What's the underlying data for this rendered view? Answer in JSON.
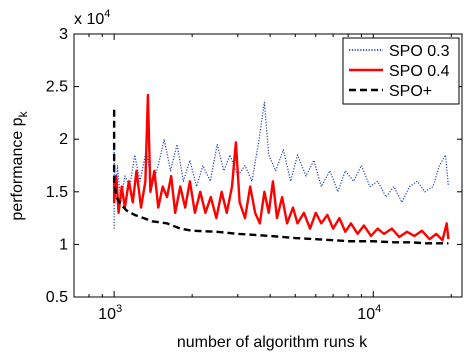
{
  "chart_data": {
    "type": "line",
    "title": "",
    "exponent_label": "x 10",
    "exponent_power": "4",
    "xlabel": "number of algorithm runs k",
    "ylabel_main": "performance p",
    "ylabel_sub": "k",
    "xscale": "log",
    "xlim": [
      700,
      22000
    ],
    "ylim": [
      0.5,
      3.0
    ],
    "grid": false,
    "legend_position": "top-right",
    "y_ticks": [
      {
        "value": 0.5,
        "label": "0.5"
      },
      {
        "value": 1.0,
        "label": "1"
      },
      {
        "value": 1.5,
        "label": "1.5"
      },
      {
        "value": 2.0,
        "label": "2"
      },
      {
        "value": 2.5,
        "label": "2.5"
      },
      {
        "value": 3.0,
        "label": "3"
      }
    ],
    "x_ticks": [
      {
        "value": 1000,
        "base": "10",
        "power": "3"
      },
      {
        "value": 10000,
        "base": "10",
        "power": "4"
      }
    ],
    "series": [
      {
        "name": "SPO 0.3",
        "color": "#1f3fcf",
        "style": "dotted",
        "points": [
          [
            1000,
            1.15
          ],
          [
            1000,
            1.9
          ],
          [
            1010,
            1.45
          ],
          [
            1030,
            1.75
          ],
          [
            1060,
            1.4
          ],
          [
            1100,
            1.65
          ],
          [
            1150,
            1.55
          ],
          [
            1200,
            1.85
          ],
          [
            1260,
            1.6
          ],
          [
            1330,
            1.9
          ],
          [
            1400,
            1.55
          ],
          [
            1480,
            1.75
          ],
          [
            1560,
            2.0
          ],
          [
            1650,
            1.7
          ],
          [
            1750,
            1.95
          ],
          [
            1850,
            1.6
          ],
          [
            1960,
            1.8
          ],
          [
            2080,
            1.55
          ],
          [
            2200,
            1.75
          ],
          [
            2350,
            1.6
          ],
          [
            2500,
            1.95
          ],
          [
            2650,
            1.7
          ],
          [
            2800,
            1.85
          ],
          [
            3000,
            1.65
          ],
          [
            3200,
            1.75
          ],
          [
            3400,
            1.6
          ],
          [
            3600,
            1.95
          ],
          [
            3800,
            2.35
          ],
          [
            3950,
            1.85
          ],
          [
            4200,
            1.7
          ],
          [
            4500,
            1.9
          ],
          [
            4800,
            1.6
          ],
          [
            5100,
            1.85
          ],
          [
            5500,
            1.65
          ],
          [
            5900,
            1.8
          ],
          [
            6300,
            1.55
          ],
          [
            6800,
            1.7
          ],
          [
            7300,
            1.5
          ],
          [
            7800,
            1.7
          ],
          [
            8400,
            1.6
          ],
          [
            9000,
            1.75
          ],
          [
            9700,
            1.55
          ],
          [
            10400,
            1.6
          ],
          [
            11200,
            1.45
          ],
          [
            12000,
            1.55
          ],
          [
            12900,
            1.4
          ],
          [
            13800,
            1.55
          ],
          [
            14800,
            1.6
          ],
          [
            15800,
            1.5
          ],
          [
            17000,
            1.55
          ],
          [
            18000,
            1.75
          ],
          [
            19000,
            1.85
          ],
          [
            19500,
            1.55
          ]
        ]
      },
      {
        "name": "SPO 0.4",
        "color": "#ff0000",
        "style": "solid",
        "points": [
          [
            1000,
            1.6
          ],
          [
            1000,
            1.4
          ],
          [
            1020,
            1.65
          ],
          [
            1040,
            1.3
          ],
          [
            1070,
            1.55
          ],
          [
            1100,
            1.35
          ],
          [
            1140,
            1.6
          ],
          [
            1180,
            1.4
          ],
          [
            1220,
            1.7
          ],
          [
            1270,
            1.35
          ],
          [
            1320,
            1.6
          ],
          [
            1350,
            2.42
          ],
          [
            1380,
            1.5
          ],
          [
            1430,
            1.7
          ],
          [
            1480,
            1.35
          ],
          [
            1540,
            1.55
          ],
          [
            1600,
            1.45
          ],
          [
            1660,
            1.65
          ],
          [
            1720,
            1.3
          ],
          [
            1800,
            1.55
          ],
          [
            1880,
            1.35
          ],
          [
            1960,
            1.6
          ],
          [
            2050,
            1.3
          ],
          [
            2150,
            1.5
          ],
          [
            2250,
            1.3
          ],
          [
            2360,
            1.45
          ],
          [
            2480,
            1.25
          ],
          [
            2600,
            1.5
          ],
          [
            2720,
            1.3
          ],
          [
            2850,
            1.55
          ],
          [
            2950,
            1.97
          ],
          [
            3050,
            1.4
          ],
          [
            3200,
            1.25
          ],
          [
            3350,
            1.55
          ],
          [
            3500,
            1.3
          ],
          [
            3650,
            1.2
          ],
          [
            3800,
            1.5
          ],
          [
            3950,
            1.3
          ],
          [
            4100,
            1.6
          ],
          [
            4250,
            1.25
          ],
          [
            4450,
            1.45
          ],
          [
            4650,
            1.2
          ],
          [
            4900,
            1.35
          ],
          [
            5100,
            1.2
          ],
          [
            5400,
            1.3
          ],
          [
            5700,
            1.15
          ],
          [
            6000,
            1.3
          ],
          [
            6300,
            1.2
          ],
          [
            6650,
            1.28
          ],
          [
            7000,
            1.15
          ],
          [
            7400,
            1.25
          ],
          [
            7800,
            1.12
          ],
          [
            8200,
            1.2
          ],
          [
            8700,
            1.1
          ],
          [
            9200,
            1.18
          ],
          [
            9800,
            1.08
          ],
          [
            10400,
            1.15
          ],
          [
            11000,
            1.1
          ],
          [
            11800,
            1.15
          ],
          [
            12600,
            1.07
          ],
          [
            13500,
            1.12
          ],
          [
            14400,
            1.08
          ],
          [
            15400,
            1.13
          ],
          [
            16500,
            1.05
          ],
          [
            17500,
            1.1
          ],
          [
            18500,
            1.04
          ],
          [
            19200,
            1.2
          ],
          [
            19500,
            1.05
          ]
        ]
      },
      {
        "name": "SPO+",
        "color": "#000000",
        "style": "dashed",
        "points": [
          [
            1000,
            2.28
          ],
          [
            1000,
            1.6
          ],
          [
            1020,
            1.45
          ],
          [
            1060,
            1.38
          ],
          [
            1120,
            1.32
          ],
          [
            1200,
            1.28
          ],
          [
            1300,
            1.25
          ],
          [
            1400,
            1.22
          ],
          [
            1600,
            1.2
          ],
          [
            1800,
            1.15
          ],
          [
            2000,
            1.13
          ],
          [
            2500,
            1.12
          ],
          [
            3000,
            1.1
          ],
          [
            3500,
            1.09
          ],
          [
            4000,
            1.08
          ],
          [
            4500,
            1.07
          ],
          [
            5000,
            1.06
          ],
          [
            6000,
            1.05
          ],
          [
            7000,
            1.04
          ],
          [
            8000,
            1.03
          ],
          [
            10000,
            1.03
          ],
          [
            12000,
            1.02
          ],
          [
            14000,
            1.02
          ],
          [
            16000,
            1.01
          ],
          [
            18000,
            1.01
          ],
          [
            19500,
            1.01
          ]
        ]
      }
    ]
  }
}
